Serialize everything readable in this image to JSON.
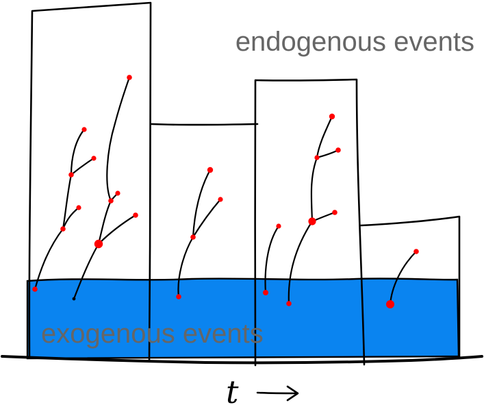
{
  "diagram": {
    "endogenous_label": "endogenous events",
    "exogenous_label": "exogenous events",
    "time_label": "t",
    "colors": {
      "exogenous_fill": "#0a84f0",
      "event_dot": "#ff0000",
      "label_text": "#666666",
      "outline": "#000000",
      "background": "#ffffff"
    },
    "bar_count": 4,
    "cascade_count": 6
  }
}
